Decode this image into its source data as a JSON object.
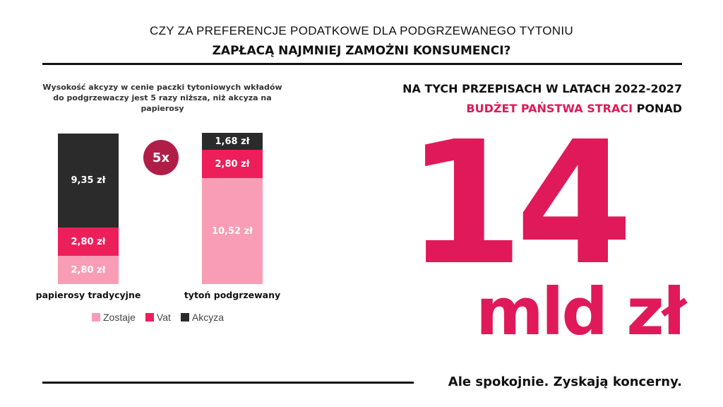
{
  "header": {
    "line1": "CZY ZA PREFERENCJE PODATKOWE DLA PODGRZEWANEGO TYTONIU",
    "line2": "ZAPŁACĄ NAJMNIEJ ZAMOŻNI KONSUMENCI?"
  },
  "chart_data": {
    "type": "bar",
    "stacked": true,
    "title": "Wysokość akcyzy w cenie paczki tytoniowych wkładów  do podgrzewaczy jest 5 razy niższa, niż akcyza na papierosy",
    "categories": [
      "papierosy tradycyjne",
      "tytoń podgrzewany"
    ],
    "series": [
      {
        "name": "Zostaje",
        "color": "#f89db5",
        "values": [
          2.8,
          10.52
        ],
        "labels": [
          "2,80 zł",
          "10,52 zł"
        ]
      },
      {
        "name": "Vat",
        "color": "#ed1f5b",
        "values": [
          2.8,
          2.8
        ],
        "labels": [
          "2,80 zł",
          "2,80 zł"
        ]
      },
      {
        "name": "Akcyza",
        "color": "#2b2b2b",
        "values": [
          9.35,
          1.68
        ],
        "labels": [
          "9,35 zł",
          "1,68 zł"
        ]
      }
    ],
    "annotation": "5x",
    "legend_position": "bottom"
  },
  "right": {
    "line1": "NA TYCH PRZEPISACH W LATACH 2022-2027",
    "line2_highlight": "BUDŻET PAŃSTWA STRACI",
    "line2_rest": " PONAD",
    "big_number": "14",
    "unit": "mld zł",
    "accent": "#e0195a"
  },
  "footer": {
    "text": "Ale spokojnie. Zyskają koncerny."
  }
}
